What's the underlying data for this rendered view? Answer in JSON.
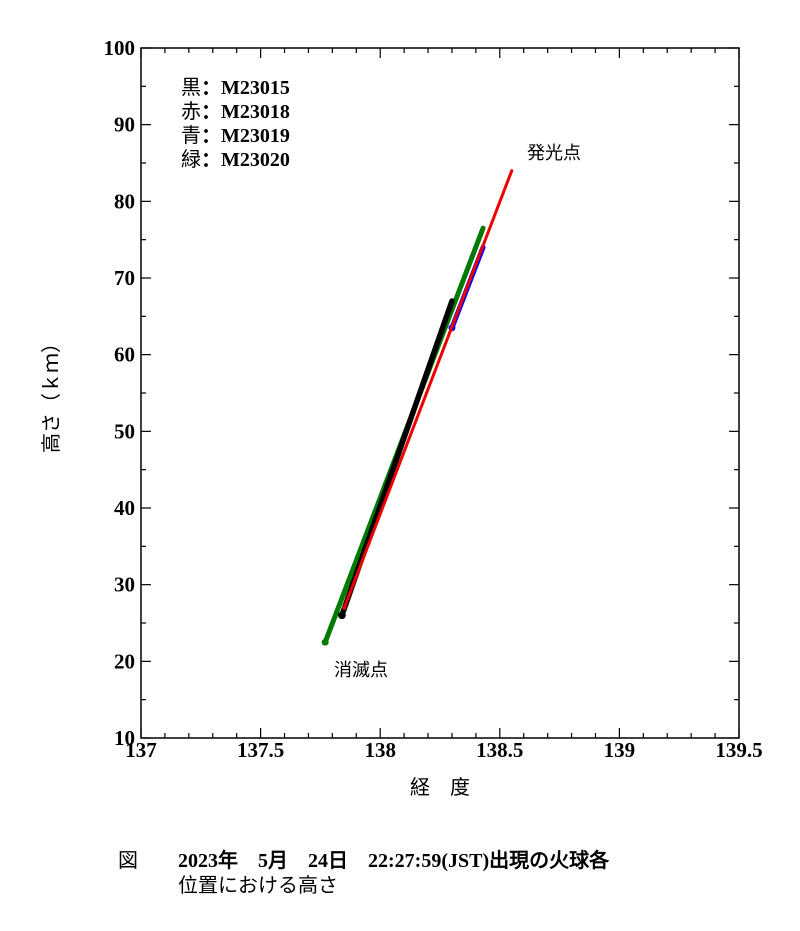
{
  "chart_data": {
    "type": "scatter",
    "xlabel": "経　度",
    "ylabel": "高さ（ｋｍ）",
    "xlim": [
      137,
      139.5
    ],
    "ylim": [
      10,
      100
    ],
    "xticks": [
      137,
      137.5,
      138,
      138.5,
      139,
      139.5
    ],
    "yticks": [
      10,
      20,
      30,
      40,
      50,
      60,
      70,
      80,
      90,
      100
    ],
    "x_minor_step": 0.1,
    "y_minor_step": 5,
    "grid": false,
    "legend": {
      "placement": "top-left",
      "entries": [
        {
          "color_name": "黒",
          "sep": "：",
          "id": "M23015"
        },
        {
          "color_name": "赤",
          "sep": "：",
          "id": "M23018"
        },
        {
          "color_name": "青",
          "sep": "：",
          "id": "M23019"
        },
        {
          "color_name": "緑",
          "sep": "：",
          "id": "M23020"
        }
      ]
    },
    "series": [
      {
        "name": "M23015",
        "color": "#000000",
        "start": [
          138.3,
          67.0
        ],
        "end": [
          137.84,
          26.0
        ]
      },
      {
        "name": "M23018",
        "color": "#ee0000",
        "start": [
          138.55,
          84.0
        ],
        "end": [
          137.85,
          27.0
        ]
      },
      {
        "name": "M23019",
        "color": "#0000ff",
        "start": [
          138.43,
          74.0
        ],
        "end": [
          138.3,
          63.5
        ]
      },
      {
        "name": "M23020",
        "color": "#007a00",
        "start": [
          138.43,
          76.5
        ],
        "end": [
          137.77,
          22.5
        ]
      }
    ],
    "annotations": [
      {
        "label": "発光点",
        "x": 138.55,
        "y": 86.5
      },
      {
        "label": "消滅点",
        "x": 137.97,
        "y": 18.5
      }
    ]
  },
  "caption": {
    "fig_mark": "図",
    "line1": "2023年　5月　24日　22:27:59(JST)出現の火球各",
    "line2": "位置における高さ"
  }
}
